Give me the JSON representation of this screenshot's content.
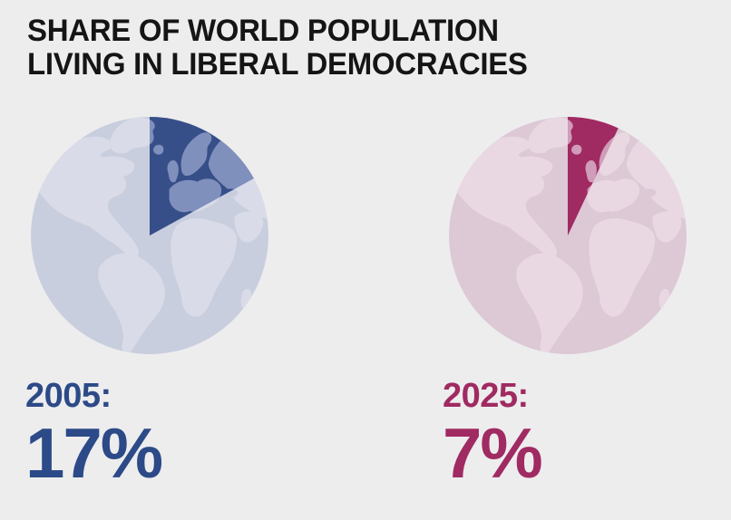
{
  "title": {
    "line1": "SHARE OF WORLD POPULATION",
    "line2": "LIVING IN LIBERAL DEMOCRACIES"
  },
  "background": "#ededee",
  "title_color": "#151515",
  "chart_data": {
    "type": "pie",
    "title": "Share of world population living in liberal democracies",
    "unit": "percent of world population",
    "wedge_start_angle_deg": 0,
    "wedge_direction": "clockwise",
    "legend_position": "below",
    "series": [
      {
        "year": "2005",
        "label": "2005:",
        "value": 17,
        "value_label": "17%",
        "colors": {
          "ocean": "#c9cede",
          "land": "#d9dce8",
          "wedge": "#374f88",
          "wedge_land": "#8090bd",
          "text": "#2c4a87"
        }
      },
      {
        "year": "2025",
        "label": "2025:",
        "value": 7,
        "value_label": "7%",
        "colors": {
          "ocean": "#ddc8d6",
          "land": "#e9d8e2",
          "wedge": "#a02a62",
          "wedge_land": "#cf9db9",
          "text": "#a02a62"
        }
      }
    ]
  }
}
